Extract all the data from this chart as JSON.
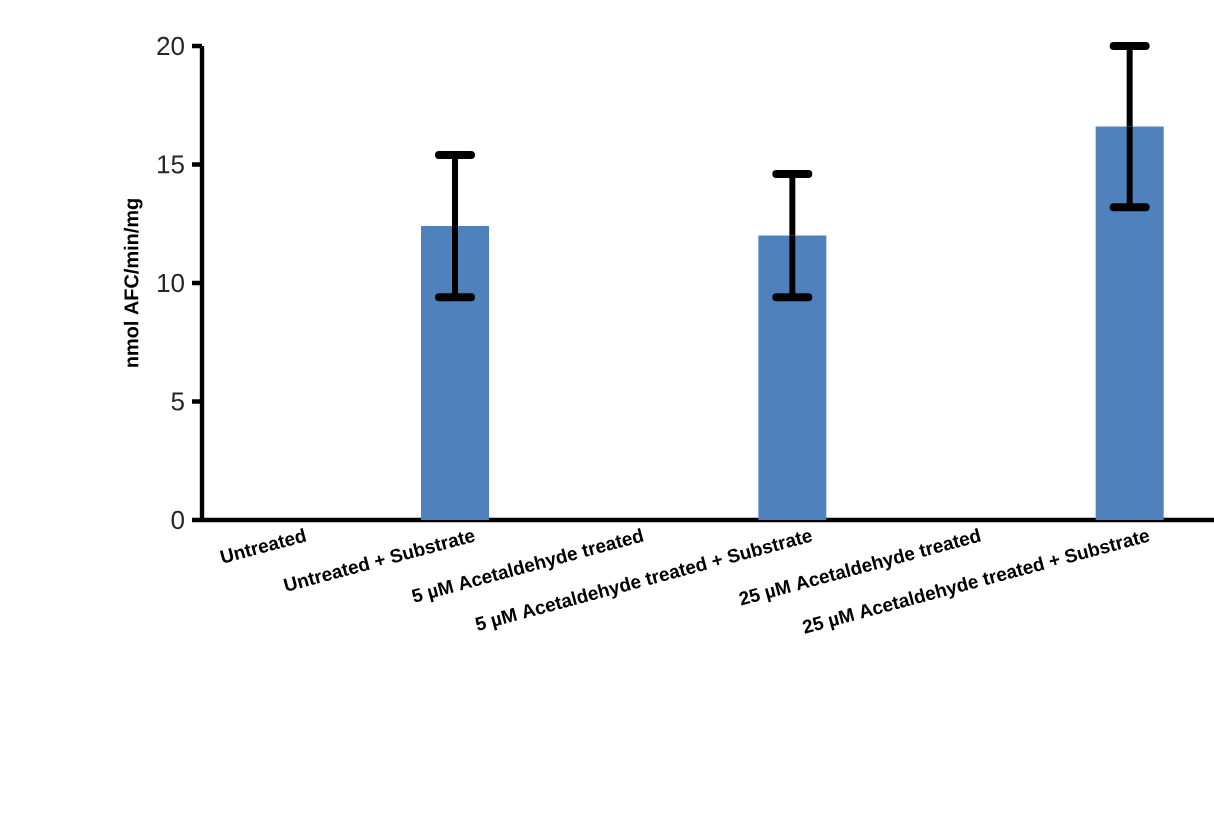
{
  "chart_data": {
    "type": "bar",
    "ylabel": "nmol AFC/min/mg",
    "categories": [
      "Untreated",
      "Untreated + Substrate",
      "5 µM Acetaldehyde treated",
      "5 µM Acetaldehyde treated + Substrate",
      "25 µM Acetaldehyde treated",
      "25 µM Acetaldehyde treated + Substrate"
    ],
    "values": [
      null,
      12.4,
      null,
      12.0,
      null,
      16.6
    ],
    "errors": [
      null,
      3.0,
      null,
      2.6,
      null,
      3.4
    ],
    "color": "#4f81bd",
    "ylim": [
      0,
      20
    ],
    "yticks": [
      0,
      5,
      10,
      15,
      20
    ]
  }
}
